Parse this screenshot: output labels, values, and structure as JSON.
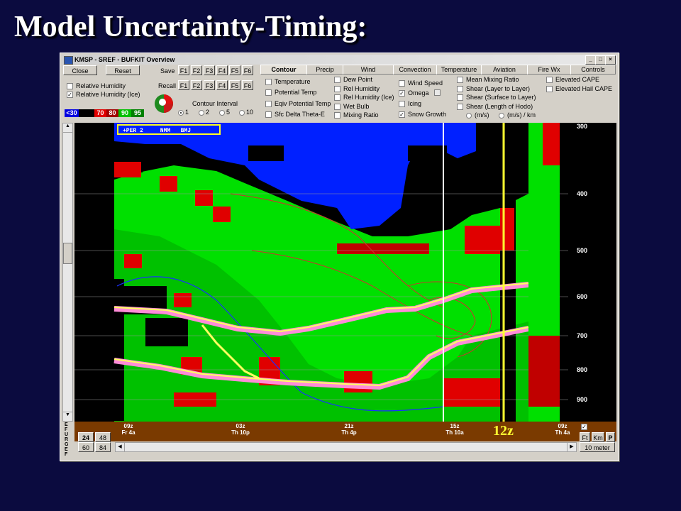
{
  "slide": {
    "title": "Model Uncertainty-Timing:"
  },
  "window": {
    "title": "KMSP - SREF - BUFKIT Overview",
    "close": "Close",
    "reset": "Reset",
    "save_label": "Save",
    "recall_label": "Recall",
    "fkeys": [
      "F1",
      "F2",
      "F3",
      "F4",
      "F5",
      "F6"
    ],
    "rh_label": "Relative Humidity",
    "rhice_label": "Relative Humidity (Ice)",
    "contour_interval": "Contour Interval",
    "intervals": [
      "1",
      "2",
      "5",
      "10"
    ],
    "legend": {
      "lt30": "<30",
      "b70": "70",
      "b80": "80",
      "b90": "90",
      "b95": "95"
    },
    "tabs": [
      "Contour",
      "Precip",
      "Wind",
      "Convection",
      "Temperature",
      "Aviation",
      "Fire Wx",
      "Controls"
    ],
    "col1": [
      "Temperature",
      "Potential Temp",
      "Eqiv Potential Temp",
      "Sfc Delta Theta-E"
    ],
    "col2": [
      "Dew Point",
      "Rel Humidity",
      "Rel Humidity (Ice)",
      "Wet Bulb",
      "Mixing Ratio"
    ],
    "col3": [
      "Wind Speed",
      "Omega",
      "Icing",
      "Snow Growth"
    ],
    "col4": [
      "Mean Mixing Ratio",
      "Shear (Layer to Layer)",
      "Shear (Surface to Layer)",
      "Shear (Length of Hodo)"
    ],
    "units": [
      "(m/s)",
      "(m/s) / km"
    ],
    "col5": [
      "Elevated CAPE",
      "Elevated Hail CAPE"
    ]
  },
  "plot": {
    "member_label": "+PER 2     NMM   BMJ",
    "pressure_levels": [
      "300",
      "400",
      "500",
      "600",
      "700",
      "800",
      "900"
    ],
    "times": [
      {
        "z": "09z",
        "d": "Fr 4a"
      },
      {
        "z": "03z",
        "d": "Th 10p"
      },
      {
        "z": "21z",
        "d": "Th 4p"
      },
      {
        "z": "15z",
        "d": "Th 10a"
      },
      {
        "z": "09z",
        "d": "Th 4a"
      }
    ],
    "annotation": "12z",
    "left_scale": "E F U R G E F"
  },
  "bottom": {
    "b24": "24",
    "b48": "48",
    "b60": "60",
    "b84": "84",
    "ft": "Ft",
    "km": "Km",
    "p": "P",
    "ten_meter": "10 meter"
  }
}
